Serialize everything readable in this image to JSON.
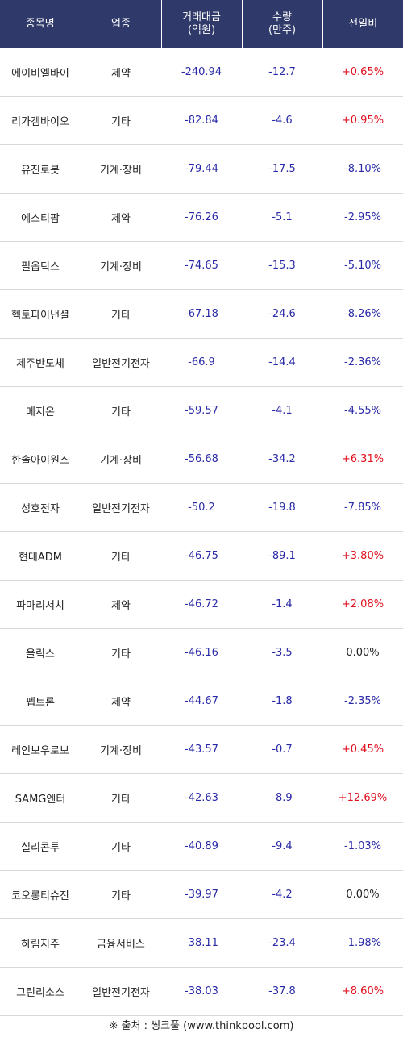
{
  "headers": [
    "종목명",
    "업종",
    "거래대금\n(억원)",
    "수량\n(만주)",
    "전일비"
  ],
  "rows": [
    {
      "name": "에이비엘바이",
      "sector": "제약",
      "amount": "-240.94",
      "qty": "-12.7",
      "change": "+0.65%",
      "dir": "up"
    },
    {
      "name": "리가켐바이오",
      "sector": "기타",
      "amount": "-82.84",
      "qty": "-4.6",
      "change": "+0.95%",
      "dir": "up"
    },
    {
      "name": "유진로봇",
      "sector": "기계·장비",
      "amount": "-79.44",
      "qty": "-17.5",
      "change": "-8.10%",
      "dir": "down"
    },
    {
      "name": "에스티팜",
      "sector": "제약",
      "amount": "-76.26",
      "qty": "-5.1",
      "change": "-2.95%",
      "dir": "down"
    },
    {
      "name": "필옵틱스",
      "sector": "기계·장비",
      "amount": "-74.65",
      "qty": "-15.3",
      "change": "-5.10%",
      "dir": "down"
    },
    {
      "name": "헥토파이낸셜",
      "sector": "기타",
      "amount": "-67.18",
      "qty": "-24.6",
      "change": "-8.26%",
      "dir": "down"
    },
    {
      "name": "제주반도체",
      "sector": "일반전기전자",
      "amount": "-66.9",
      "qty": "-14.4",
      "change": "-2.36%",
      "dir": "down"
    },
    {
      "name": "메지온",
      "sector": "기타",
      "amount": "-59.57",
      "qty": "-4.1",
      "change": "-4.55%",
      "dir": "down"
    },
    {
      "name": "한솔아이원스",
      "sector": "기계·장비",
      "amount": "-56.68",
      "qty": "-34.2",
      "change": "+6.31%",
      "dir": "up"
    },
    {
      "name": "성호전자",
      "sector": "일반전기전자",
      "amount": "-50.2",
      "qty": "-19.8",
      "change": "-7.85%",
      "dir": "down"
    },
    {
      "name": "현대ADM",
      "sector": "기타",
      "amount": "-46.75",
      "qty": "-89.1",
      "change": "+3.80%",
      "dir": "up"
    },
    {
      "name": "파마리서치",
      "sector": "제약",
      "amount": "-46.72",
      "qty": "-1.4",
      "change": "+2.08%",
      "dir": "up"
    },
    {
      "name": "올릭스",
      "sector": "기타",
      "amount": "-46.16",
      "qty": "-3.5",
      "change": "0.00%",
      "dir": "flat"
    },
    {
      "name": "펩트론",
      "sector": "제약",
      "amount": "-44.67",
      "qty": "-1.8",
      "change": "-2.35%",
      "dir": "down"
    },
    {
      "name": "레인보우로보",
      "sector": "기계·장비",
      "amount": "-43.57",
      "qty": "-0.7",
      "change": "+0.45%",
      "dir": "up"
    },
    {
      "name": "SAMG엔터",
      "sector": "기타",
      "amount": "-42.63",
      "qty": "-8.9",
      "change": "+12.69%",
      "dir": "up"
    },
    {
      "name": "실리콘투",
      "sector": "기타",
      "amount": "-40.89",
      "qty": "-9.4",
      "change": "-1.03%",
      "dir": "down"
    },
    {
      "name": "코오롱티슈진",
      "sector": "기타",
      "amount": "-39.97",
      "qty": "-4.2",
      "change": "0.00%",
      "dir": "flat"
    },
    {
      "name": "하림지주",
      "sector": "금융서비스",
      "amount": "-38.11",
      "qty": "-23.4",
      "change": "-1.98%",
      "dir": "down"
    },
    {
      "name": "그린리소스",
      "sector": "일반전기전자",
      "amount": "-38.03",
      "qty": "-37.8",
      "change": "+8.60%",
      "dir": "up"
    }
  ],
  "source": "※ 출처 : 씽크풀 (www.thinkpool.com)"
}
